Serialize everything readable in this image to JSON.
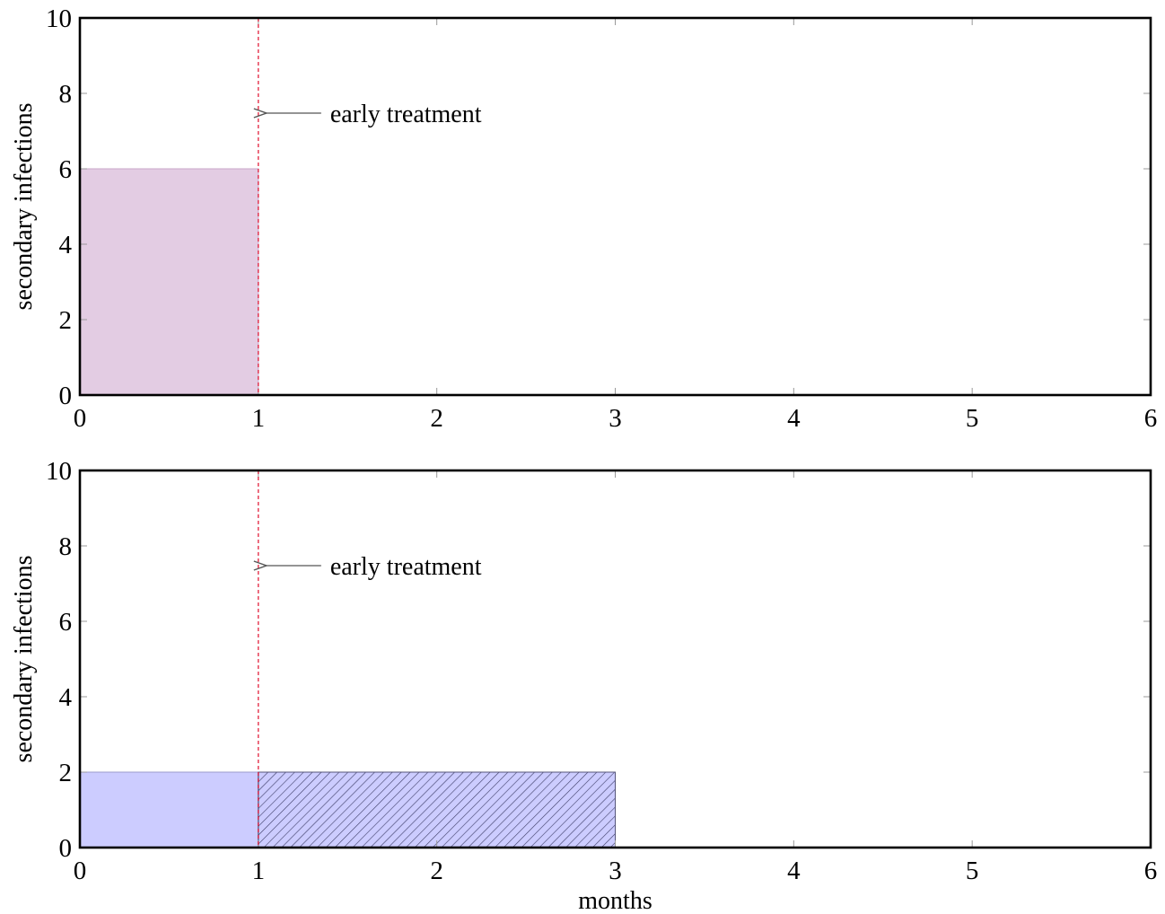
{
  "chart_data": [
    {
      "type": "bar",
      "title": "",
      "xlabel": "",
      "ylabel": "secondary infections",
      "xlim": [
        0,
        6
      ],
      "ylim": [
        0,
        10
      ],
      "xticks": [
        0,
        1,
        2,
        3,
        4,
        5,
        6
      ],
      "yticks": [
        0,
        2,
        4,
        6,
        8,
        10
      ],
      "grid": false,
      "bars": [
        {
          "x_start": 0,
          "x_end": 1,
          "value": 6,
          "fill": "#e3cce3",
          "stroke": "#c8a6c8",
          "pattern": "none"
        }
      ],
      "markers": [
        {
          "x": 1,
          "style": "dashed",
          "color": "#e0102e"
        }
      ],
      "annotations": [
        {
          "text": "early treatment",
          "x": 1,
          "y": 7.5,
          "color": "#555555"
        }
      ]
    },
    {
      "type": "bar",
      "title": "",
      "xlabel": "months",
      "ylabel": "secondary infections",
      "xlim": [
        0,
        6
      ],
      "ylim": [
        0,
        10
      ],
      "xticks": [
        0,
        1,
        2,
        3,
        4,
        5,
        6
      ],
      "yticks": [
        0,
        2,
        4,
        6,
        8,
        10
      ],
      "grid": false,
      "bars": [
        {
          "x_start": 0,
          "x_end": 1,
          "value": 2,
          "fill": "#ccccff",
          "stroke": "#9a9acc",
          "pattern": "none"
        },
        {
          "x_start": 1,
          "x_end": 3,
          "value": 2,
          "fill": "#ccccff",
          "stroke": "#55557a",
          "pattern": "hatch"
        }
      ],
      "markers": [
        {
          "x": 1,
          "style": "dashed",
          "color": "#e0102e"
        }
      ],
      "annotations": [
        {
          "text": "early treatment",
          "x": 1,
          "y": 7.5,
          "color": "#555555"
        }
      ]
    }
  ]
}
